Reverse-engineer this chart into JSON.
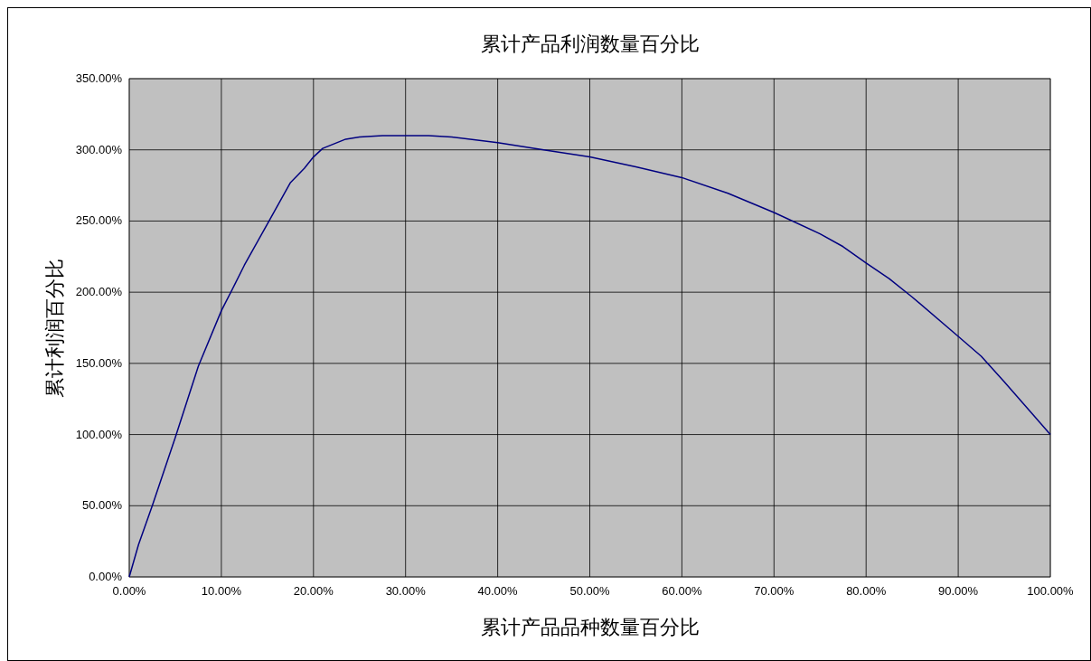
{
  "chart_data": {
    "type": "line",
    "title": "累计产品利润数量百分比",
    "xlabel": "累计产品品种数量百分比",
    "ylabel": "累计利润百分比",
    "x": [
      0,
      1,
      2.5,
      5,
      7.5,
      10,
      11.5,
      12.5,
      15,
      17.5,
      19,
      20,
      21,
      23.5,
      25,
      27.5,
      32.5,
      35,
      40,
      45,
      50,
      55,
      60,
      65,
      70,
      75,
      77.5,
      80,
      82.5,
      85,
      90,
      92.5,
      95,
      100
    ],
    "series": [
      {
        "color": "#000080",
        "values": [
          0,
          22.6,
          50,
          98,
          148,
          187,
          206,
          219,
          248,
          277,
          287,
          295,
          301,
          307.5,
          309,
          310,
          310,
          309,
          305,
          300,
          295,
          288,
          280.5,
          269.5,
          256,
          241,
          232,
          220.5,
          209.5,
          196.6,
          169,
          155,
          137,
          100
        ]
      }
    ],
    "xlim": [
      0,
      100
    ],
    "ylim": [
      0,
      350
    ],
    "xticks": [
      {
        "value": 0,
        "label": "0.00%"
      },
      {
        "value": 10,
        "label": "10.00%"
      },
      {
        "value": 20,
        "label": "20.00%"
      },
      {
        "value": 30,
        "label": "30.00%"
      },
      {
        "value": 40,
        "label": "40.00%"
      },
      {
        "value": 50,
        "label": "50.00%"
      },
      {
        "value": 60,
        "label": "60.00%"
      },
      {
        "value": 70,
        "label": "70.00%"
      },
      {
        "value": 80,
        "label": "80.00%"
      },
      {
        "value": 90,
        "label": "90.00%"
      },
      {
        "value": 100,
        "label": "100.00%"
      }
    ],
    "yticks": [
      {
        "value": 0,
        "label": "0.00%"
      },
      {
        "value": 50,
        "label": "50.00%"
      },
      {
        "value": 100,
        "label": "100.00%"
      },
      {
        "value": 150,
        "label": "150.00%"
      },
      {
        "value": 200,
        "label": "200.00%"
      },
      {
        "value": 250,
        "label": "250.00%"
      },
      {
        "value": 300,
        "label": "300.00%"
      },
      {
        "value": 350,
        "label": "350.00%"
      }
    ],
    "grid": true,
    "marker": "none",
    "line_style": "solid"
  }
}
